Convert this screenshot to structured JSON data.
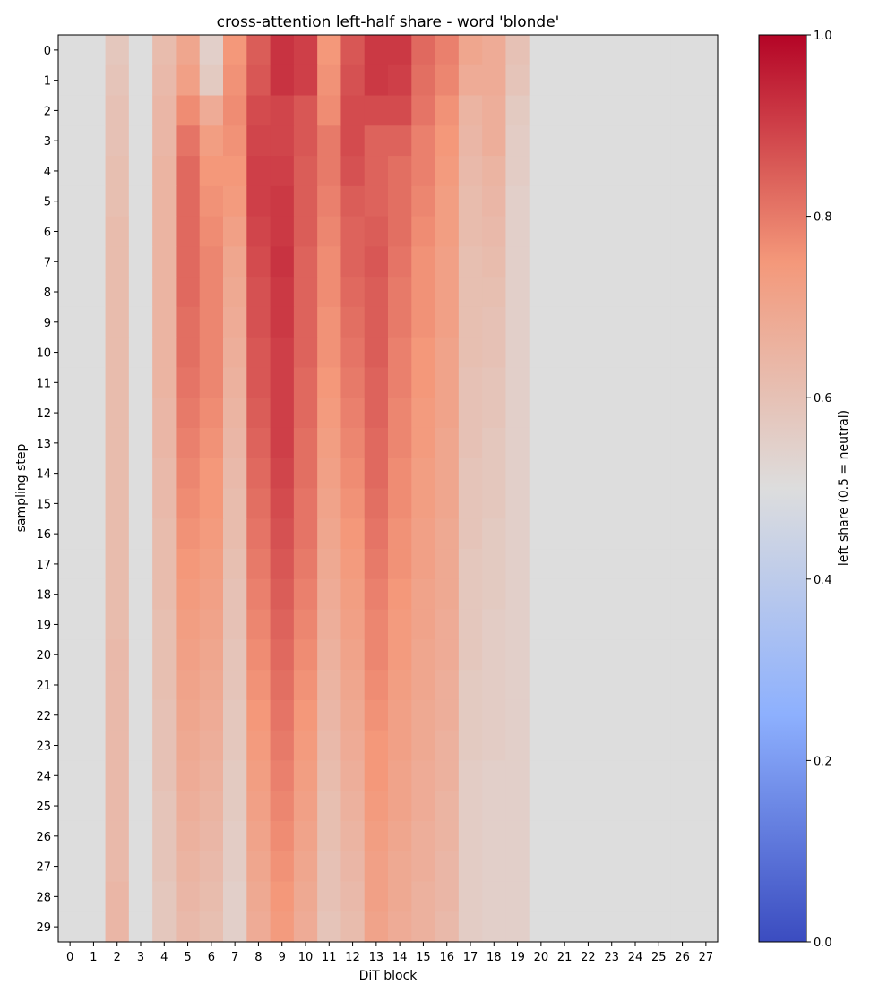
{
  "chart_data": {
    "type": "heatmap",
    "title": "cross-attention left-half share - word 'blonde'",
    "xlabel": "DiT block",
    "ylabel": "sampling step",
    "colorbar_label": "left share (0.5 = neutral)",
    "colormap": "coolwarm",
    "vmin": 0.0,
    "vmax": 1.0,
    "colorbar_ticks": [
      0.0,
      0.2,
      0.4,
      0.6,
      0.8,
      1.0
    ],
    "colorbar_tick_labels": [
      "0.0",
      "0.2",
      "0.4",
      "0.6",
      "0.8",
      "1.0"
    ],
    "x_categories": [
      "0",
      "1",
      "2",
      "3",
      "4",
      "5",
      "6",
      "7",
      "8",
      "9",
      "10",
      "11",
      "12",
      "13",
      "14",
      "15",
      "16",
      "17",
      "18",
      "19",
      "20",
      "21",
      "22",
      "23",
      "24",
      "25",
      "26",
      "27"
    ],
    "y_categories": [
      "0",
      "1",
      "2",
      "3",
      "4",
      "5",
      "6",
      "7",
      "8",
      "9",
      "10",
      "11",
      "12",
      "13",
      "14",
      "15",
      "16",
      "17",
      "18",
      "19",
      "20",
      "21",
      "22",
      "23",
      "24",
      "25",
      "26",
      "27",
      "28",
      "29"
    ],
    "grid": false,
    "legend": "colorbar-right",
    "values": [
      [
        0.5,
        0.5,
        0.58,
        0.5,
        0.62,
        0.7,
        0.55,
        0.75,
        0.85,
        0.92,
        0.9,
        0.75,
        0.86,
        0.91,
        0.91,
        0.83,
        0.79,
        0.7,
        0.68,
        0.6,
        0.5,
        0.5,
        0.5,
        0.5,
        0.5,
        0.5,
        0.5,
        0.5
      ],
      [
        0.5,
        0.5,
        0.59,
        0.5,
        0.63,
        0.72,
        0.57,
        0.76,
        0.86,
        0.92,
        0.9,
        0.76,
        0.87,
        0.91,
        0.9,
        0.82,
        0.78,
        0.68,
        0.68,
        0.59,
        0.5,
        0.5,
        0.5,
        0.5,
        0.5,
        0.5,
        0.5,
        0.5
      ],
      [
        0.5,
        0.5,
        0.6,
        0.5,
        0.64,
        0.77,
        0.68,
        0.77,
        0.88,
        0.89,
        0.86,
        0.77,
        0.88,
        0.88,
        0.88,
        0.81,
        0.76,
        0.65,
        0.67,
        0.57,
        0.5,
        0.5,
        0.5,
        0.5,
        0.5,
        0.5,
        0.5,
        0.5
      ],
      [
        0.5,
        0.5,
        0.6,
        0.5,
        0.64,
        0.81,
        0.73,
        0.76,
        0.89,
        0.89,
        0.86,
        0.8,
        0.88,
        0.84,
        0.84,
        0.79,
        0.75,
        0.64,
        0.67,
        0.56,
        0.5,
        0.5,
        0.5,
        0.5,
        0.5,
        0.5,
        0.5,
        0.5
      ],
      [
        0.5,
        0.5,
        0.61,
        0.5,
        0.65,
        0.83,
        0.75,
        0.75,
        0.9,
        0.9,
        0.85,
        0.8,
        0.87,
        0.84,
        0.82,
        0.79,
        0.74,
        0.63,
        0.65,
        0.56,
        0.5,
        0.5,
        0.5,
        0.5,
        0.5,
        0.5,
        0.5,
        0.5
      ],
      [
        0.5,
        0.5,
        0.61,
        0.5,
        0.65,
        0.83,
        0.76,
        0.74,
        0.9,
        0.91,
        0.85,
        0.79,
        0.85,
        0.84,
        0.82,
        0.78,
        0.73,
        0.62,
        0.64,
        0.55,
        0.5,
        0.5,
        0.5,
        0.5,
        0.5,
        0.5,
        0.5,
        0.5
      ],
      [
        0.5,
        0.5,
        0.62,
        0.5,
        0.65,
        0.83,
        0.77,
        0.72,
        0.89,
        0.91,
        0.85,
        0.78,
        0.84,
        0.85,
        0.82,
        0.77,
        0.73,
        0.62,
        0.63,
        0.55,
        0.5,
        0.5,
        0.5,
        0.5,
        0.5,
        0.5,
        0.5,
        0.5
      ],
      [
        0.5,
        0.5,
        0.62,
        0.5,
        0.65,
        0.83,
        0.78,
        0.7,
        0.88,
        0.92,
        0.84,
        0.77,
        0.84,
        0.86,
        0.81,
        0.76,
        0.72,
        0.61,
        0.62,
        0.55,
        0.5,
        0.5,
        0.5,
        0.5,
        0.5,
        0.5,
        0.5,
        0.5
      ],
      [
        0.5,
        0.5,
        0.62,
        0.5,
        0.65,
        0.83,
        0.78,
        0.69,
        0.87,
        0.91,
        0.84,
        0.77,
        0.83,
        0.85,
        0.8,
        0.76,
        0.72,
        0.61,
        0.61,
        0.55,
        0.5,
        0.5,
        0.5,
        0.5,
        0.5,
        0.5,
        0.5,
        0.5
      ],
      [
        0.5,
        0.5,
        0.62,
        0.5,
        0.65,
        0.82,
        0.78,
        0.68,
        0.87,
        0.91,
        0.84,
        0.76,
        0.82,
        0.85,
        0.8,
        0.76,
        0.72,
        0.61,
        0.6,
        0.55,
        0.5,
        0.5,
        0.5,
        0.5,
        0.5,
        0.5,
        0.5,
        0.5
      ],
      [
        0.5,
        0.5,
        0.62,
        0.5,
        0.65,
        0.82,
        0.78,
        0.67,
        0.86,
        0.9,
        0.84,
        0.76,
        0.81,
        0.85,
        0.79,
        0.75,
        0.71,
        0.61,
        0.6,
        0.55,
        0.5,
        0.5,
        0.5,
        0.5,
        0.5,
        0.5,
        0.5,
        0.5
      ],
      [
        0.5,
        0.5,
        0.62,
        0.5,
        0.65,
        0.81,
        0.78,
        0.66,
        0.86,
        0.9,
        0.83,
        0.75,
        0.8,
        0.84,
        0.79,
        0.75,
        0.71,
        0.6,
        0.59,
        0.55,
        0.5,
        0.5,
        0.5,
        0.5,
        0.5,
        0.5,
        0.5,
        0.5
      ],
      [
        0.5,
        0.5,
        0.62,
        0.5,
        0.64,
        0.8,
        0.77,
        0.65,
        0.85,
        0.9,
        0.83,
        0.74,
        0.79,
        0.84,
        0.78,
        0.74,
        0.71,
        0.6,
        0.59,
        0.55,
        0.5,
        0.5,
        0.5,
        0.5,
        0.5,
        0.5,
        0.5,
        0.5
      ],
      [
        0.5,
        0.5,
        0.62,
        0.5,
        0.64,
        0.79,
        0.76,
        0.64,
        0.84,
        0.9,
        0.82,
        0.73,
        0.78,
        0.83,
        0.78,
        0.74,
        0.7,
        0.6,
        0.58,
        0.55,
        0.5,
        0.5,
        0.5,
        0.5,
        0.5,
        0.5,
        0.5,
        0.5
      ],
      [
        0.5,
        0.5,
        0.62,
        0.5,
        0.63,
        0.78,
        0.75,
        0.63,
        0.83,
        0.89,
        0.82,
        0.72,
        0.77,
        0.83,
        0.77,
        0.73,
        0.7,
        0.59,
        0.58,
        0.55,
        0.5,
        0.5,
        0.5,
        0.5,
        0.5,
        0.5,
        0.5,
        0.5
      ],
      [
        0.5,
        0.5,
        0.62,
        0.5,
        0.63,
        0.77,
        0.75,
        0.62,
        0.82,
        0.88,
        0.81,
        0.71,
        0.76,
        0.82,
        0.77,
        0.73,
        0.7,
        0.59,
        0.58,
        0.55,
        0.5,
        0.5,
        0.5,
        0.5,
        0.5,
        0.5,
        0.5,
        0.5
      ],
      [
        0.5,
        0.5,
        0.62,
        0.5,
        0.62,
        0.76,
        0.74,
        0.62,
        0.81,
        0.87,
        0.81,
        0.7,
        0.75,
        0.81,
        0.76,
        0.72,
        0.69,
        0.59,
        0.57,
        0.55,
        0.5,
        0.5,
        0.5,
        0.5,
        0.5,
        0.5,
        0.5,
        0.5
      ],
      [
        0.5,
        0.5,
        0.62,
        0.5,
        0.62,
        0.75,
        0.73,
        0.61,
        0.8,
        0.86,
        0.8,
        0.69,
        0.74,
        0.8,
        0.76,
        0.72,
        0.69,
        0.58,
        0.57,
        0.55,
        0.5,
        0.5,
        0.5,
        0.5,
        0.5,
        0.5,
        0.5,
        0.5
      ],
      [
        0.5,
        0.5,
        0.62,
        0.5,
        0.62,
        0.74,
        0.72,
        0.6,
        0.79,
        0.85,
        0.79,
        0.68,
        0.73,
        0.79,
        0.75,
        0.71,
        0.69,
        0.58,
        0.57,
        0.55,
        0.5,
        0.5,
        0.5,
        0.5,
        0.5,
        0.5,
        0.5,
        0.5
      ],
      [
        0.5,
        0.5,
        0.62,
        0.5,
        0.61,
        0.73,
        0.71,
        0.6,
        0.78,
        0.84,
        0.78,
        0.67,
        0.72,
        0.78,
        0.74,
        0.71,
        0.68,
        0.58,
        0.56,
        0.55,
        0.5,
        0.5,
        0.5,
        0.5,
        0.5,
        0.5,
        0.5,
        0.5
      ],
      [
        0.5,
        0.5,
        0.63,
        0.5,
        0.61,
        0.72,
        0.7,
        0.59,
        0.77,
        0.83,
        0.77,
        0.66,
        0.71,
        0.78,
        0.74,
        0.7,
        0.68,
        0.58,
        0.56,
        0.55,
        0.5,
        0.5,
        0.5,
        0.5,
        0.5,
        0.5,
        0.5,
        0.5
      ],
      [
        0.5,
        0.5,
        0.63,
        0.5,
        0.61,
        0.71,
        0.69,
        0.59,
        0.76,
        0.82,
        0.76,
        0.65,
        0.7,
        0.77,
        0.73,
        0.7,
        0.67,
        0.57,
        0.56,
        0.55,
        0.5,
        0.5,
        0.5,
        0.5,
        0.5,
        0.5,
        0.5,
        0.5
      ],
      [
        0.5,
        0.5,
        0.63,
        0.5,
        0.6,
        0.7,
        0.68,
        0.58,
        0.75,
        0.81,
        0.75,
        0.64,
        0.69,
        0.76,
        0.72,
        0.69,
        0.67,
        0.57,
        0.56,
        0.55,
        0.5,
        0.5,
        0.5,
        0.5,
        0.5,
        0.5,
        0.5,
        0.5
      ],
      [
        0.5,
        0.5,
        0.63,
        0.5,
        0.6,
        0.69,
        0.67,
        0.58,
        0.74,
        0.8,
        0.74,
        0.63,
        0.68,
        0.75,
        0.72,
        0.69,
        0.66,
        0.57,
        0.56,
        0.55,
        0.5,
        0.5,
        0.5,
        0.5,
        0.5,
        0.5,
        0.5,
        0.5
      ],
      [
        0.5,
        0.5,
        0.63,
        0.5,
        0.6,
        0.68,
        0.66,
        0.57,
        0.73,
        0.79,
        0.73,
        0.62,
        0.67,
        0.75,
        0.71,
        0.68,
        0.66,
        0.56,
        0.55,
        0.55,
        0.5,
        0.5,
        0.5,
        0.5,
        0.5,
        0.5,
        0.5,
        0.5
      ],
      [
        0.5,
        0.5,
        0.63,
        0.5,
        0.59,
        0.67,
        0.65,
        0.57,
        0.72,
        0.78,
        0.72,
        0.61,
        0.66,
        0.74,
        0.71,
        0.68,
        0.65,
        0.56,
        0.55,
        0.55,
        0.5,
        0.5,
        0.5,
        0.5,
        0.5,
        0.5,
        0.5,
        0.5
      ],
      [
        0.5,
        0.5,
        0.63,
        0.5,
        0.59,
        0.66,
        0.64,
        0.56,
        0.71,
        0.77,
        0.71,
        0.61,
        0.65,
        0.73,
        0.7,
        0.67,
        0.65,
        0.56,
        0.55,
        0.55,
        0.5,
        0.5,
        0.5,
        0.5,
        0.5,
        0.5,
        0.5,
        0.5
      ],
      [
        0.5,
        0.5,
        0.63,
        0.5,
        0.59,
        0.65,
        0.63,
        0.56,
        0.7,
        0.76,
        0.7,
        0.6,
        0.64,
        0.72,
        0.69,
        0.67,
        0.64,
        0.56,
        0.55,
        0.55,
        0.5,
        0.5,
        0.5,
        0.5,
        0.5,
        0.5,
        0.5,
        0.5
      ],
      [
        0.5,
        0.5,
        0.64,
        0.5,
        0.58,
        0.64,
        0.62,
        0.55,
        0.69,
        0.75,
        0.69,
        0.6,
        0.63,
        0.72,
        0.69,
        0.66,
        0.64,
        0.56,
        0.55,
        0.55,
        0.5,
        0.5,
        0.5,
        0.5,
        0.5,
        0.5,
        0.5,
        0.5
      ],
      [
        0.5,
        0.5,
        0.64,
        0.5,
        0.58,
        0.63,
        0.61,
        0.55,
        0.68,
        0.74,
        0.68,
        0.59,
        0.62,
        0.71,
        0.68,
        0.66,
        0.63,
        0.56,
        0.55,
        0.55,
        0.5,
        0.5,
        0.5,
        0.5,
        0.5,
        0.5,
        0.5,
        0.5
      ]
    ]
  }
}
